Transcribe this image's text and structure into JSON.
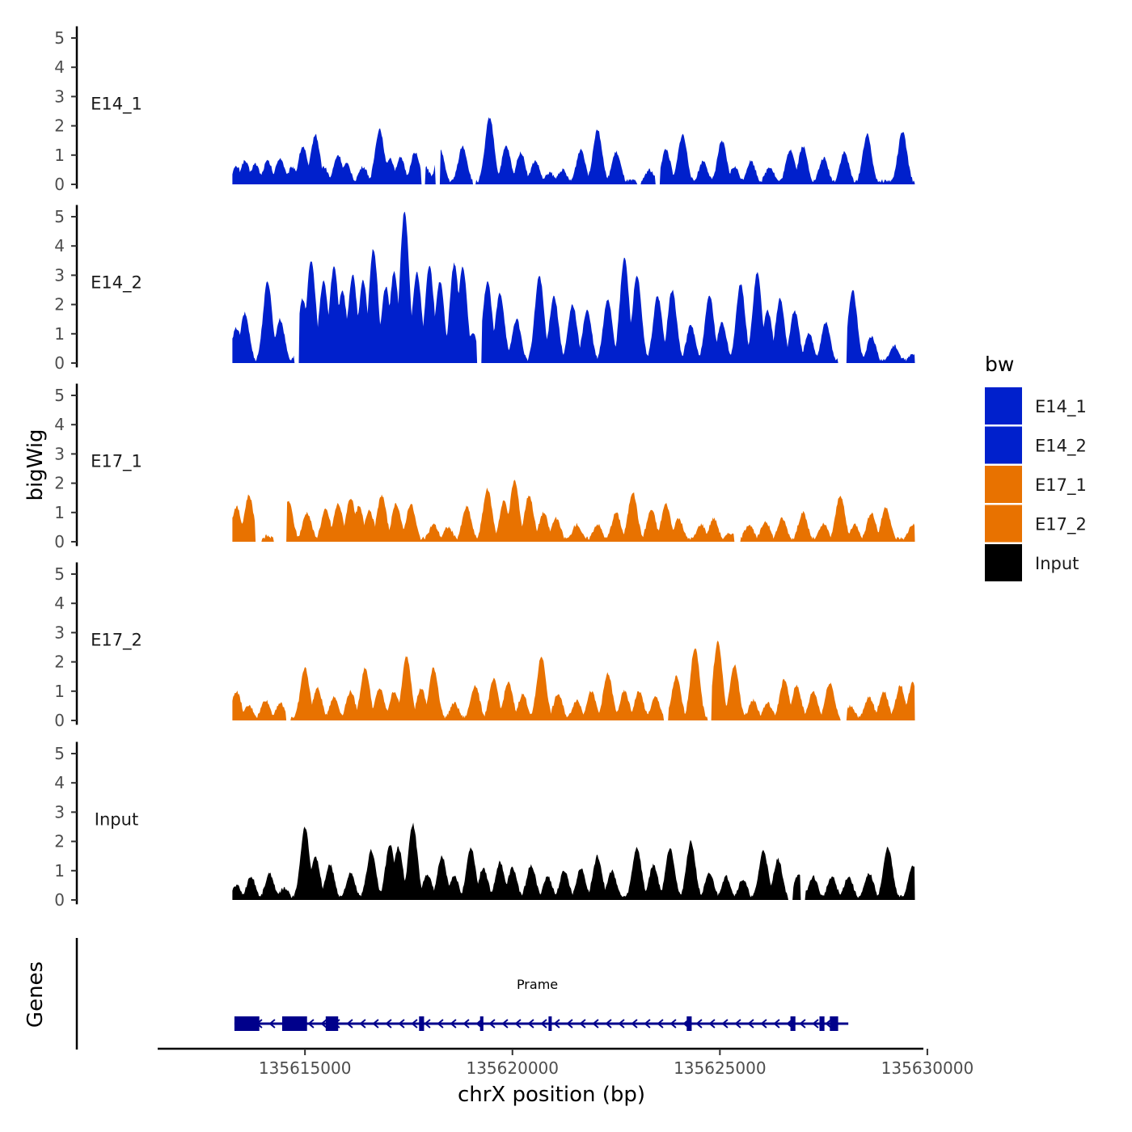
{
  "chart_data": {
    "type": "area",
    "title": "",
    "xlabel": "chrX position (bp)",
    "ylabel": "bigWig",
    "genes_label": "Genes",
    "xlim": [
      135611450,
      135630450
    ],
    "x_ticks": [
      {
        "value": 135615000,
        "label": "135615000"
      },
      {
        "value": 135620000,
        "label": "135620000"
      },
      {
        "value": 135625000,
        "label": "135625000"
      },
      {
        "value": 135630000,
        "label": "135630000"
      }
    ],
    "ylim": [
      0,
      5.3
    ],
    "y_ticks": [
      {
        "value": 0,
        "label": "0"
      },
      {
        "value": 1,
        "label": "1"
      },
      {
        "value": 2,
        "label": "2"
      },
      {
        "value": 3,
        "label": "3"
      },
      {
        "value": 4,
        "label": "4"
      },
      {
        "value": 5,
        "label": "5"
      }
    ],
    "data_range": [
      135613250,
      135629700
    ],
    "legend": {
      "title": "bw",
      "placement": "right",
      "entries": [
        {
          "label": "E14_1",
          "color": "#0020CC"
        },
        {
          "label": "E14_2",
          "color": "#0020CC"
        },
        {
          "label": "E17_1",
          "color": "#E87200"
        },
        {
          "label": "E17_2",
          "color": "#E87200"
        },
        {
          "label": "Input",
          "color": "#000000"
        }
      ]
    },
    "series": [
      {
        "name": "E14_1",
        "color": "#0020CC",
        "label": "E14_1",
        "peaks": [
          [
            135613350,
            0.6
          ],
          [
            135613550,
            0.8
          ],
          [
            135613800,
            0.7
          ],
          [
            135614100,
            0.8
          ],
          [
            135614400,
            0.9
          ],
          [
            135614700,
            0.6
          ],
          [
            135614950,
            1.3
          ],
          [
            135615150,
            0.6
          ],
          [
            135615250,
            1.7
          ],
          [
            135615450,
            0.6
          ],
          [
            135615800,
            1.0
          ],
          [
            135616000,
            0.7
          ],
          [
            135616400,
            0.6
          ],
          [
            135616800,
            1.9
          ],
          [
            135617050,
            0.9
          ],
          [
            135617300,
            0.9
          ],
          [
            135617650,
            1.1
          ],
          [
            135617900,
            0.6
          ],
          [
            135618250,
            1.2
          ],
          [
            135618800,
            1.3
          ],
          [
            135619450,
            2.3
          ],
          [
            135619850,
            1.3
          ],
          [
            135620200,
            1.1
          ],
          [
            135620550,
            0.8
          ],
          [
            135620900,
            0.4
          ],
          [
            135621200,
            0.5
          ],
          [
            135621650,
            1.2
          ],
          [
            135622050,
            1.9
          ],
          [
            135622500,
            1.1
          ],
          [
            135623300,
            0.5
          ],
          [
            135623700,
            1.2
          ],
          [
            135624100,
            1.7
          ],
          [
            135624600,
            0.8
          ],
          [
            135625050,
            1.5
          ],
          [
            135625350,
            0.6
          ],
          [
            135625750,
            0.8
          ],
          [
            135626200,
            0.6
          ],
          [
            135626700,
            1.2
          ],
          [
            135627000,
            1.3
          ],
          [
            135627500,
            0.9
          ],
          [
            135628000,
            1.1
          ],
          [
            135628550,
            1.7
          ],
          [
            135629400,
            1.8
          ]
        ],
        "gaps": [
          [
            135617800,
            135617900
          ],
          [
            135618150,
            135618250
          ],
          [
            135619050,
            135619120
          ],
          [
            135623000,
            135623100
          ],
          [
            135623450,
            135623550
          ]
        ]
      },
      {
        "name": "E14_2",
        "color": "#0020CC",
        "label": "E14_2",
        "peaks": [
          [
            135613350,
            1.2
          ],
          [
            135613550,
            1.7
          ],
          [
            135614100,
            2.8
          ],
          [
            135614400,
            1.5
          ],
          [
            135614950,
            2.2
          ],
          [
            135615150,
            3.5
          ],
          [
            135615450,
            2.8
          ],
          [
            135615700,
            3.3
          ],
          [
            135615900,
            2.5
          ],
          [
            135616150,
            3.0
          ],
          [
            135616400,
            2.8
          ],
          [
            135616650,
            3.9
          ],
          [
            135616950,
            2.6
          ],
          [
            135617150,
            3.1
          ],
          [
            135617400,
            5.2
          ],
          [
            135617700,
            3.1
          ],
          [
            135618000,
            3.3
          ],
          [
            135618250,
            2.8
          ],
          [
            135618600,
            3.4
          ],
          [
            135618800,
            3.3
          ],
          [
            135619050,
            1.0
          ],
          [
            135619400,
            2.8
          ],
          [
            135619700,
            2.4
          ],
          [
            135620100,
            1.5
          ],
          [
            135620650,
            3.0
          ],
          [
            135621000,
            2.3
          ],
          [
            135621450,
            2.0
          ],
          [
            135621800,
            1.8
          ],
          [
            135622300,
            2.2
          ],
          [
            135622700,
            3.6
          ],
          [
            135623000,
            3.0
          ],
          [
            135623500,
            2.3
          ],
          [
            135623850,
            2.5
          ],
          [
            135624300,
            1.3
          ],
          [
            135624750,
            2.3
          ],
          [
            135625050,
            1.4
          ],
          [
            135625500,
            2.7
          ],
          [
            135625900,
            3.1
          ],
          [
            135626150,
            1.8
          ],
          [
            135626450,
            2.2
          ],
          [
            135626800,
            1.8
          ],
          [
            135627150,
            1.0
          ],
          [
            135627550,
            1.4
          ],
          [
            135628200,
            2.5
          ],
          [
            135628650,
            0.9
          ],
          [
            135629200,
            0.6
          ],
          [
            135629650,
            0.3
          ]
        ],
        "gaps": [
          [
            135614750,
            135614850
          ],
          [
            135619150,
            135619250
          ],
          [
            135627850,
            135628050
          ]
        ]
      },
      {
        "name": "E17_1",
        "color": "#E87200",
        "label": "E17_1",
        "peaks": [
          [
            135613350,
            1.2
          ],
          [
            135613650,
            1.6
          ],
          [
            135614100,
            0.2
          ],
          [
            135614600,
            1.4
          ],
          [
            135615050,
            1.0
          ],
          [
            135615500,
            1.1
          ],
          [
            135615800,
            1.3
          ],
          [
            135616100,
            1.5
          ],
          [
            135616300,
            1.2
          ],
          [
            135616550,
            1.1
          ],
          [
            135616850,
            1.6
          ],
          [
            135617200,
            1.3
          ],
          [
            135617550,
            1.3
          ],
          [
            135618100,
            0.6
          ],
          [
            135618450,
            0.5
          ],
          [
            135618900,
            1.2
          ],
          [
            135619400,
            1.8
          ],
          [
            135619800,
            1.4
          ],
          [
            135620050,
            2.1
          ],
          [
            135620400,
            1.6
          ],
          [
            135620750,
            1.0
          ],
          [
            135621050,
            0.8
          ],
          [
            135621550,
            0.6
          ],
          [
            135622050,
            0.6
          ],
          [
            135622500,
            1.0
          ],
          [
            135622900,
            1.7
          ],
          [
            135623350,
            1.1
          ],
          [
            135623700,
            1.3
          ],
          [
            135624000,
            0.8
          ],
          [
            135624550,
            0.6
          ],
          [
            135624850,
            0.8
          ],
          [
            135625250,
            0.3
          ],
          [
            135625700,
            0.6
          ],
          [
            135626100,
            0.7
          ],
          [
            135626500,
            0.8
          ],
          [
            135627000,
            1.0
          ],
          [
            135627500,
            0.6
          ],
          [
            135627900,
            1.6
          ],
          [
            135628250,
            0.6
          ],
          [
            135628650,
            1.0
          ],
          [
            135629000,
            1.2
          ],
          [
            135629650,
            0.6
          ]
        ],
        "gaps": [
          [
            135613800,
            135613950
          ],
          [
            135614250,
            135614550
          ],
          [
            135625350,
            135625500
          ]
        ]
      },
      {
        "name": "E17_2",
        "color": "#E87200",
        "label": "E17_2",
        "peaks": [
          [
            135613350,
            1.0
          ],
          [
            135613650,
            0.5
          ],
          [
            135614050,
            0.7
          ],
          [
            135614400,
            0.6
          ],
          [
            135615000,
            1.8
          ],
          [
            135615300,
            1.1
          ],
          [
            135615700,
            0.8
          ],
          [
            135616100,
            1.0
          ],
          [
            135616450,
            1.8
          ],
          [
            135616800,
            1.1
          ],
          [
            135617150,
            1.0
          ],
          [
            135617450,
            2.2
          ],
          [
            135617800,
            1.1
          ],
          [
            135618100,
            1.8
          ],
          [
            135618600,
            0.6
          ],
          [
            135619100,
            1.2
          ],
          [
            135619550,
            1.4
          ],
          [
            135619900,
            1.3
          ],
          [
            135620250,
            0.9
          ],
          [
            135620700,
            2.2
          ],
          [
            135621100,
            0.9
          ],
          [
            135621550,
            0.7
          ],
          [
            135621900,
            1.0
          ],
          [
            135622300,
            1.6
          ],
          [
            135622700,
            1.0
          ],
          [
            135623050,
            1.0
          ],
          [
            135623450,
            0.8
          ],
          [
            135623950,
            1.5
          ],
          [
            135624400,
            2.5
          ],
          [
            135624950,
            2.7
          ],
          [
            135625350,
            1.9
          ],
          [
            135625800,
            0.7
          ],
          [
            135626150,
            0.6
          ],
          [
            135626550,
            1.4
          ],
          [
            135626850,
            1.2
          ],
          [
            135627250,
            1.0
          ],
          [
            135627650,
            1.3
          ],
          [
            135628150,
            0.5
          ],
          [
            135628600,
            0.8
          ],
          [
            135628950,
            1.0
          ],
          [
            135629350,
            1.2
          ],
          [
            135629650,
            1.3
          ]
        ],
        "gaps": [
          [
            135614550,
            135614650
          ],
          [
            135623650,
            135623750
          ],
          [
            135624700,
            135624800
          ],
          [
            135627900,
            135628050
          ]
        ]
      },
      {
        "name": "Input",
        "color": "#000000",
        "label": "Input",
        "peaks": [
          [
            135613350,
            0.5
          ],
          [
            135613700,
            0.8
          ],
          [
            135614150,
            0.9
          ],
          [
            135614500,
            0.4
          ],
          [
            135615000,
            2.5
          ],
          [
            135615250,
            1.5
          ],
          [
            135615600,
            1.2
          ],
          [
            135616100,
            0.9
          ],
          [
            135616600,
            1.7
          ],
          [
            135617050,
            1.9
          ],
          [
            135617250,
            1.8
          ],
          [
            135617600,
            2.6
          ],
          [
            135617950,
            0.9
          ],
          [
            135618300,
            1.5
          ],
          [
            135618600,
            0.8
          ],
          [
            135619000,
            1.8
          ],
          [
            135619300,
            1.1
          ],
          [
            135619700,
            1.3
          ],
          [
            135620000,
            1.1
          ],
          [
            135620450,
            1.2
          ],
          [
            135620850,
            0.8
          ],
          [
            135621250,
            1.0
          ],
          [
            135621650,
            1.1
          ],
          [
            135622050,
            1.5
          ],
          [
            135622400,
            1.0
          ],
          [
            135623000,
            1.8
          ],
          [
            135623400,
            1.2
          ],
          [
            135623800,
            1.8
          ],
          [
            135624300,
            2.0
          ],
          [
            135624750,
            0.9
          ],
          [
            135625150,
            0.8
          ],
          [
            135625550,
            0.7
          ],
          [
            135626050,
            1.7
          ],
          [
            135626400,
            1.4
          ],
          [
            135626900,
            0.9
          ],
          [
            135627250,
            0.8
          ],
          [
            135627700,
            0.8
          ],
          [
            135628100,
            0.8
          ],
          [
            135628600,
            0.9
          ],
          [
            135629050,
            1.8
          ],
          [
            135629650,
            1.2
          ]
        ],
        "gaps": [
          [
            135626650,
            135626750
          ],
          [
            135626950,
            135627050
          ]
        ]
      }
    ],
    "genes": [
      {
        "name": "Prame",
        "start": 135613300,
        "end": 135627900,
        "strand": "-",
        "exons": [
          [
            135613300,
            135613900
          ],
          [
            135614450,
            135615050
          ],
          [
            135615500,
            135615800
          ],
          [
            135617750,
            135617870
          ],
          [
            135619220,
            135619300
          ],
          [
            135620870,
            135620900
          ],
          [
            135624200,
            135624320
          ],
          [
            135626700,
            135626820
          ],
          [
            135627400,
            135627520
          ],
          [
            135627650,
            135627850
          ]
        ]
      }
    ]
  }
}
